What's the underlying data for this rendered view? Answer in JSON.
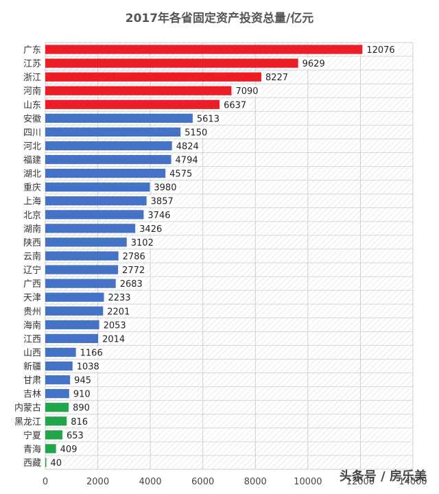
{
  "chart_data": {
    "type": "bar",
    "orientation": "horizontal",
    "title": "2017年各省固定资产投资总量/亿元",
    "categories": [
      "广东",
      "江苏",
      "浙江",
      "河南",
      "山东",
      "安徽",
      "四川",
      "河北",
      "福建",
      "湖北",
      "重庆",
      "上海",
      "北京",
      "湖南",
      "陕西",
      "云南",
      "辽宁",
      "广西",
      "天津",
      "贵州",
      "海南",
      "江西",
      "山西",
      "新疆",
      "甘肃",
      "吉林",
      "内蒙古",
      "黑龙江",
      "宁夏",
      "青海",
      "西藏"
    ],
    "values": [
      12076,
      9629,
      8227,
      7090,
      6637,
      5613,
      5150,
      4824,
      4794,
      4575,
      3980,
      3857,
      3746,
      3426,
      3102,
      2786,
      2772,
      2683,
      2233,
      2201,
      2053,
      2014,
      1166,
      1038,
      945,
      910,
      890,
      816,
      653,
      409,
      40
    ],
    "value_labels": [
      "12076",
      "9629",
      "8227",
      "7090",
      "6637",
      "5613",
      "5150",
      "4824",
      "4794",
      "4575",
      "3980",
      "3857",
      "3746",
      "3426",
      "3102",
      "2786",
      "2772",
      "2683",
      "2233",
      "2201",
      "2053",
      "2014",
      "1166",
      "1038",
      "945",
      "910",
      "890",
      "816",
      "653",
      "409",
      "40"
    ],
    "bar_colors": [
      "red",
      "red",
      "red",
      "red",
      "red",
      "blue",
      "blue",
      "blue",
      "blue",
      "blue",
      "blue",
      "blue",
      "blue",
      "blue",
      "blue",
      "blue",
      "blue",
      "blue",
      "blue",
      "blue",
      "blue",
      "blue",
      "blue",
      "blue",
      "blue",
      "blue",
      "green",
      "green",
      "green",
      "green",
      "green"
    ],
    "color_map": {
      "red": "#ee1c25",
      "blue": "#4472c4",
      "green": "#21a64b"
    },
    "xlim": [
      0,
      14000
    ],
    "xticks": [
      0,
      2000,
      4000,
      6000,
      8000,
      10000,
      12000,
      14000
    ],
    "xtick_labels": [
      "0",
      "2000",
      "4000",
      "6000",
      "8000",
      "10000",
      "12000",
      "14000"
    ],
    "grid": true,
    "legend": "none"
  },
  "watermark": "头条号 / 房乐美"
}
